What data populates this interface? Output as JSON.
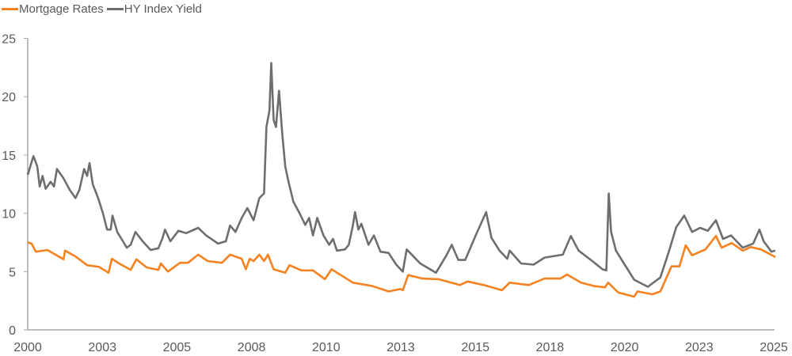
{
  "chart_data": {
    "type": "line",
    "title": "",
    "xlabel": "",
    "ylabel": "",
    "ylim": [
      0,
      25
    ],
    "xlim": [
      2000,
      2025
    ],
    "grid": false,
    "legend_placement": "top-left",
    "yticks": [
      0,
      5,
      10,
      15,
      20,
      25
    ],
    "xticks": [
      {
        "value": 2000,
        "label": "2000"
      },
      {
        "value": 2002.5,
        "label": "2003"
      },
      {
        "value": 2005,
        "label": "2005"
      },
      {
        "value": 2007.5,
        "label": "2008"
      },
      {
        "value": 2010,
        "label": "2010"
      },
      {
        "value": 2012.5,
        "label": "2013"
      },
      {
        "value": 2015,
        "label": "2015"
      },
      {
        "value": 2017.5,
        "label": "2018"
      },
      {
        "value": 2020,
        "label": "2020"
      },
      {
        "value": 2022.5,
        "label": "2023"
      },
      {
        "value": 2025,
        "label": "2025"
      }
    ],
    "series": [
      {
        "name": "Mortgage Rates",
        "color": "#F58220",
        "points": [
          [
            2000,
            7.5
          ],
          [
            2000.13,
            7.4
          ],
          [
            2000.27,
            6.7
          ],
          [
            2000.66,
            6.85
          ],
          [
            2000.93,
            6.45
          ],
          [
            2001.2,
            6.05
          ],
          [
            2001.25,
            6.8
          ],
          [
            2001.6,
            6.3
          ],
          [
            2001.99,
            5.55
          ],
          [
            2002.39,
            5.4
          ],
          [
            2002.71,
            4.9
          ],
          [
            2002.82,
            6.1
          ],
          [
            2003.06,
            5.7
          ],
          [
            2003.45,
            5.15
          ],
          [
            2003.64,
            6.05
          ],
          [
            2003.99,
            5.35
          ],
          [
            2004.38,
            5.15
          ],
          [
            2004.46,
            5.7
          ],
          [
            2004.7,
            5.0
          ],
          [
            2005.1,
            5.75
          ],
          [
            2005.37,
            5.75
          ],
          [
            2005.71,
            6.45
          ],
          [
            2006.03,
            5.9
          ],
          [
            2006.51,
            5.75
          ],
          [
            2006.78,
            6.45
          ],
          [
            2007.17,
            6.1
          ],
          [
            2007.31,
            5.2
          ],
          [
            2007.44,
            6.1
          ],
          [
            2007.57,
            5.9
          ],
          [
            2007.76,
            6.45
          ],
          [
            2007.92,
            5.9
          ],
          [
            2008.05,
            6.45
          ],
          [
            2008.24,
            5.2
          ],
          [
            2008.63,
            4.9
          ],
          [
            2008.77,
            5.55
          ],
          [
            2009.17,
            5.1
          ],
          [
            2009.56,
            5.1
          ],
          [
            2009.96,
            4.35
          ],
          [
            2010.18,
            5.2
          ],
          [
            2010.49,
            4.7
          ],
          [
            2010.9,
            4.05
          ],
          [
            2011.56,
            3.75
          ],
          [
            2012.09,
            3.3
          ],
          [
            2012.49,
            3.5
          ],
          [
            2012.57,
            3.4
          ],
          [
            2012.75,
            4.7
          ],
          [
            2013.23,
            4.4
          ],
          [
            2013.76,
            4.35
          ],
          [
            2014.48,
            3.85
          ],
          [
            2014.74,
            4.15
          ],
          [
            2015.28,
            3.85
          ],
          [
            2015.89,
            3.4
          ],
          [
            2016.15,
            4.05
          ],
          [
            2016.79,
            3.85
          ],
          [
            2017.32,
            4.4
          ],
          [
            2017.85,
            4.4
          ],
          [
            2018.07,
            4.75
          ],
          [
            2018.54,
            4.05
          ],
          [
            2019.0,
            3.75
          ],
          [
            2019.34,
            3.65
          ],
          [
            2019.45,
            4.05
          ],
          [
            2019.79,
            3.2
          ],
          [
            2020.32,
            2.85
          ],
          [
            2020.43,
            3.3
          ],
          [
            2020.93,
            3.05
          ],
          [
            2021.2,
            3.3
          ],
          [
            2021.57,
            5.45
          ],
          [
            2021.84,
            5.45
          ],
          [
            2022.05,
            7.25
          ],
          [
            2022.26,
            6.4
          ],
          [
            2022.71,
            6.9
          ],
          [
            2023.06,
            8.05
          ],
          [
            2023.25,
            7.05
          ],
          [
            2023.59,
            7.45
          ],
          [
            2023.96,
            6.8
          ],
          [
            2024.23,
            7.1
          ],
          [
            2024.57,
            6.9
          ],
          [
            2025.05,
            6.25
          ]
        ]
      },
      {
        "name": "HY Index Yield",
        "color": "#6D6E70",
        "points": [
          [
            2000,
            13.3
          ],
          [
            2000.19,
            14.9
          ],
          [
            2000.32,
            14.0
          ],
          [
            2000.4,
            12.3
          ],
          [
            2000.5,
            13.2
          ],
          [
            2000.6,
            12.1
          ],
          [
            2000.77,
            12.7
          ],
          [
            2000.88,
            12.3
          ],
          [
            2000.98,
            13.8
          ],
          [
            2001.2,
            13.0
          ],
          [
            2001.41,
            12.0
          ],
          [
            2001.6,
            11.3
          ],
          [
            2001.73,
            12.0
          ],
          [
            2001.89,
            13.8
          ],
          [
            2001.99,
            13.2
          ],
          [
            2002.07,
            14.3
          ],
          [
            2002.18,
            12.5
          ],
          [
            2002.36,
            11.3
          ],
          [
            2002.52,
            10.0
          ],
          [
            2002.66,
            8.6
          ],
          [
            2002.78,
            8.6
          ],
          [
            2002.84,
            9.8
          ],
          [
            2003.0,
            8.4
          ],
          [
            2003.19,
            7.6
          ],
          [
            2003.32,
            7.05
          ],
          [
            2003.45,
            7.3
          ],
          [
            2003.61,
            8.4
          ],
          [
            2003.85,
            7.6
          ],
          [
            2004.12,
            6.85
          ],
          [
            2004.38,
            7.0
          ],
          [
            2004.52,
            7.9
          ],
          [
            2004.6,
            8.6
          ],
          [
            2004.78,
            7.6
          ],
          [
            2005.05,
            8.5
          ],
          [
            2005.31,
            8.3
          ],
          [
            2005.71,
            8.75
          ],
          [
            2005.98,
            8.1
          ],
          [
            2006.38,
            7.4
          ],
          [
            2006.64,
            7.6
          ],
          [
            2006.78,
            8.95
          ],
          [
            2006.96,
            8.4
          ],
          [
            2007.17,
            9.6
          ],
          [
            2007.36,
            10.45
          ],
          [
            2007.57,
            9.4
          ],
          [
            2007.76,
            11.3
          ],
          [
            2007.92,
            11.7
          ],
          [
            2008.0,
            17.4
          ],
          [
            2008.1,
            18.8
          ],
          [
            2008.16,
            22.9
          ],
          [
            2008.24,
            18.0
          ],
          [
            2008.32,
            17.4
          ],
          [
            2008.42,
            20.5
          ],
          [
            2008.53,
            16.8
          ],
          [
            2008.63,
            14.0
          ],
          [
            2008.74,
            12.7
          ],
          [
            2008.9,
            11.0
          ],
          [
            2009.11,
            10.0
          ],
          [
            2009.3,
            9.0
          ],
          [
            2009.43,
            9.6
          ],
          [
            2009.56,
            8.1
          ],
          [
            2009.7,
            9.6
          ],
          [
            2009.91,
            8.1
          ],
          [
            2010.1,
            7.3
          ],
          [
            2010.23,
            7.8
          ],
          [
            2010.36,
            6.8
          ],
          [
            2010.63,
            6.9
          ],
          [
            2010.76,
            7.3
          ],
          [
            2010.9,
            9.0
          ],
          [
            2010.97,
            10.1
          ],
          [
            2011.08,
            8.6
          ],
          [
            2011.18,
            9.1
          ],
          [
            2011.42,
            7.3
          ],
          [
            2011.6,
            8.1
          ],
          [
            2011.82,
            6.7
          ],
          [
            2012.09,
            6.6
          ],
          [
            2012.35,
            5.6
          ],
          [
            2012.57,
            5.0
          ],
          [
            2012.7,
            6.9
          ],
          [
            2012.89,
            6.4
          ],
          [
            2013.15,
            5.7
          ],
          [
            2013.68,
            4.9
          ],
          [
            2014.03,
            6.4
          ],
          [
            2014.21,
            7.3
          ],
          [
            2014.43,
            6.0
          ],
          [
            2014.66,
            6.0
          ],
          [
            2015.01,
            8.1
          ],
          [
            2015.36,
            10.1
          ],
          [
            2015.54,
            7.9
          ],
          [
            2015.81,
            6.8
          ],
          [
            2016.07,
            6.1
          ],
          [
            2016.15,
            6.8
          ],
          [
            2016.53,
            5.7
          ],
          [
            2016.95,
            5.6
          ],
          [
            2017.32,
            6.2
          ],
          [
            2017.93,
            6.45
          ],
          [
            2018.2,
            8.05
          ],
          [
            2018.46,
            6.8
          ],
          [
            2018.92,
            5.9
          ],
          [
            2019.26,
            5.2
          ],
          [
            2019.39,
            5.1
          ],
          [
            2019.47,
            11.7
          ],
          [
            2019.55,
            8.4
          ],
          [
            2019.71,
            6.8
          ],
          [
            2019.98,
            5.7
          ],
          [
            2020.32,
            4.3
          ],
          [
            2020.78,
            3.7
          ],
          [
            2021.2,
            4.5
          ],
          [
            2021.47,
            6.6
          ],
          [
            2021.73,
            8.8
          ],
          [
            2022.0,
            9.8
          ],
          [
            2022.26,
            8.4
          ],
          [
            2022.53,
            8.75
          ],
          [
            2022.79,
            8.5
          ],
          [
            2023.06,
            9.4
          ],
          [
            2023.3,
            7.8
          ],
          [
            2023.57,
            8.1
          ],
          [
            2023.96,
            7.05
          ],
          [
            2024.31,
            7.4
          ],
          [
            2024.52,
            8.6
          ],
          [
            2024.66,
            7.6
          ],
          [
            2024.92,
            6.7
          ],
          [
            2025.05,
            6.8
          ]
        ]
      }
    ]
  }
}
